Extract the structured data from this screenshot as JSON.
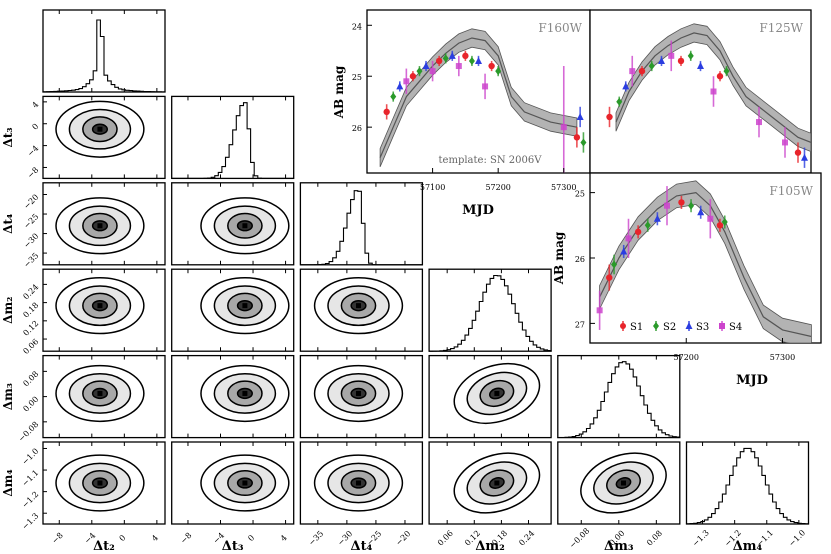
{
  "chart_data": [
    {
      "type": "corner",
      "name": "posterior-corner-plot",
      "parameters": [
        "Δt2",
        "Δt3",
        "Δt4",
        "Δm2",
        "Δm3",
        "Δm4"
      ],
      "axis_labels": {
        "x": [
          "Δt₂",
          "Δt₃",
          "Δt₄",
          "Δm₂",
          "Δm₃",
          "Δm₄"
        ],
        "y": [
          "Δt₃",
          "Δt₄",
          "Δm₂",
          "Δm₃",
          "Δm₄"
        ]
      },
      "ranges": [
        [
          -10,
          5
        ],
        [
          -10,
          5
        ],
        [
          -38,
          -17
        ],
        [
          0.02,
          0.29
        ],
        [
          -0.13,
          0.13
        ],
        [
          -1.35,
          -0.97
        ]
      ],
      "ticks": [
        {
          "values": [
            -8,
            -4,
            0,
            4
          ],
          "labels": [
            "−8",
            "−4",
            "0",
            "4"
          ]
        },
        {
          "values": [
            -8,
            -4,
            0,
            4
          ],
          "labels": [
            "−8",
            "−4",
            "0",
            "4"
          ]
        },
        {
          "values": [
            -35,
            -30,
            -25,
            -20
          ],
          "labels": [
            "−35",
            "−30",
            "−25",
            "−20"
          ]
        },
        {
          "values": [
            0.06,
            0.12,
            0.18,
            0.24
          ],
          "labels": [
            "0.06",
            "0.12",
            "0.18",
            "0.24"
          ]
        },
        {
          "values": [
            -0.08,
            0.0,
            0.08
          ],
          "labels": [
            "−0.08",
            "0.00",
            "0.08"
          ]
        },
        {
          "values": [
            -1.3,
            -1.2,
            -1.1,
            -1.0
          ],
          "labels": [
            "−1.3",
            "−1.2",
            "−1.1",
            "−1.0"
          ]
        }
      ],
      "y_ticks": [
        {
          "values": [
            4,
            0,
            -4,
            -8
          ],
          "labels": [
            "4",
            "0",
            "−4",
            "−8"
          ]
        },
        {
          "values": [
            -20,
            -25,
            -30,
            -35
          ],
          "labels": [
            "−20",
            "−25",
            "−30",
            "−35"
          ]
        },
        {
          "values": [
            0.24,
            0.18,
            0.12,
            0.06
          ],
          "labels": [
            "0.24",
            "0.18",
            "0.12",
            "0.06"
          ]
        },
        {
          "values": [
            0.08,
            0.0,
            -0.08
          ],
          "labels": [
            "0.08",
            "0.00",
            "−0.08"
          ]
        },
        {
          "values": [
            -1.0,
            -1.1,
            -1.2,
            -1.3
          ],
          "labels": [
            "−1.0",
            "−1.1",
            "−1.2",
            "−1.3"
          ]
        }
      ],
      "modes": [
        -3.0,
        -1.0,
        -28.0,
        0.17,
        0.01,
        -1.16
      ],
      "hist_shape": [
        "peaked",
        "skewed",
        "skewed",
        "gaussian",
        "gaussian",
        "gaussian"
      ]
    },
    {
      "type": "scatter",
      "name": "light-curve-panels",
      "ylabel": "AB mag",
      "xlabel": "MJD",
      "legend": [
        "S1",
        "S2",
        "S3",
        "S4"
      ],
      "series_colors": [
        "#e8242b",
        "#2a9a2a",
        "#2b3de0",
        "#cc44cc"
      ],
      "template_label": "template: SN 2006V",
      "panels": [
        {
          "band": "F160W",
          "x_range": [
            57000,
            57340
          ],
          "y_range": [
            26.9,
            23.7
          ],
          "x_ticks": [
            57100,
            57200,
            57300
          ],
          "x_tick_labels": [
            "57100",
            "57200",
            "57300"
          ],
          "y_ticks": [
            24,
            25,
            26
          ],
          "y_tick_labels": [
            "24",
            "25",
            "26"
          ],
          "template": [
            [
              57020,
              26.6
            ],
            [
              57040,
              26.0
            ],
            [
              57060,
              25.4
            ],
            [
              57080,
              25.1
            ],
            [
              57100,
              24.8
            ],
            [
              57120,
              24.55
            ],
            [
              57140,
              24.35
            ],
            [
              57160,
              24.25
            ],
            [
              57180,
              24.3
            ],
            [
              57200,
              24.6
            ],
            [
              57210,
              25.0
            ],
            [
              57220,
              25.4
            ],
            [
              57240,
              25.7
            ],
            [
              57280,
              25.9
            ],
            [
              57320,
              26.0
            ]
          ],
          "points": [
            {
              "s": 0,
              "x": 57030,
              "y": 25.7,
              "e": 0.15
            },
            {
              "s": 1,
              "x": 57040,
              "y": 25.4,
              "e": 0.1
            },
            {
              "s": 2,
              "x": 57050,
              "y": 25.2,
              "e": 0.1
            },
            {
              "s": 3,
              "x": 57060,
              "y": 25.1,
              "e": 0.25
            },
            {
              "s": 0,
              "x": 57070,
              "y": 25.0,
              "e": 0.1
            },
            {
              "s": 1,
              "x": 57080,
              "y": 24.9,
              "e": 0.1
            },
            {
              "s": 2,
              "x": 57090,
              "y": 24.8,
              "e": 0.1
            },
            {
              "s": 3,
              "x": 57100,
              "y": 24.9,
              "e": 0.2
            },
            {
              "s": 0,
              "x": 57110,
              "y": 24.7,
              "e": 0.1
            },
            {
              "s": 1,
              "x": 57120,
              "y": 24.65,
              "e": 0.1
            },
            {
              "s": 2,
              "x": 57130,
              "y": 24.6,
              "e": 0.1
            },
            {
              "s": 3,
              "x": 57140,
              "y": 24.8,
              "e": 0.2
            },
            {
              "s": 0,
              "x": 57150,
              "y": 24.6,
              "e": 0.1
            },
            {
              "s": 1,
              "x": 57160,
              "y": 24.7,
              "e": 0.1
            },
            {
              "s": 2,
              "x": 57170,
              "y": 24.7,
              "e": 0.1
            },
            {
              "s": 3,
              "x": 57180,
              "y": 25.2,
              "e": 0.25
            },
            {
              "s": 0,
              "x": 57190,
              "y": 24.8,
              "e": 0.1
            },
            {
              "s": 1,
              "x": 57200,
              "y": 24.9,
              "e": 0.1
            },
            {
              "s": 3,
              "x": 57300,
              "y": 26.0,
              "e": 1.2
            },
            {
              "s": 0,
              "x": 57320,
              "y": 26.2,
              "e": 0.2
            },
            {
              "s": 1,
              "x": 57330,
              "y": 26.3,
              "e": 0.2
            },
            {
              "s": 2,
              "x": 57325,
              "y": 25.8,
              "e": 0.2
            }
          ]
        },
        {
          "band": "F125W",
          "x_range": [
            57000,
            57340
          ],
          "y_range": [
            26.9,
            23.7
          ],
          "x_ticks": [],
          "x_tick_labels": [],
          "y_ticks": [],
          "y_tick_labels": [],
          "template": [
            [
              57040,
              25.9
            ],
            [
              57060,
              25.3
            ],
            [
              57080,
              24.9
            ],
            [
              57100,
              24.6
            ],
            [
              57120,
              24.4
            ],
            [
              57140,
              24.25
            ],
            [
              57160,
              24.15
            ],
            [
              57180,
              24.2
            ],
            [
              57200,
              24.5
            ],
            [
              57220,
              25.0
            ],
            [
              57240,
              25.4
            ],
            [
              57280,
              25.8
            ],
            [
              57320,
              26.2
            ],
            [
              57340,
              26.3
            ]
          ],
          "points": [
            {
              "s": 0,
              "x": 57030,
              "y": 25.8,
              "e": 0.2
            },
            {
              "s": 1,
              "x": 57045,
              "y": 25.5,
              "e": 0.1
            },
            {
              "s": 2,
              "x": 57055,
              "y": 25.2,
              "e": 0.1
            },
            {
              "s": 3,
              "x": 57065,
              "y": 24.9,
              "e": 0.3
            },
            {
              "s": 0,
              "x": 57080,
              "y": 24.9,
              "e": 0.1
            },
            {
              "s": 1,
              "x": 57095,
              "y": 24.8,
              "e": 0.1
            },
            {
              "s": 2,
              "x": 57110,
              "y": 24.7,
              "e": 0.1
            },
            {
              "s": 3,
              "x": 57125,
              "y": 24.6,
              "e": 0.3
            },
            {
              "s": 0,
              "x": 57140,
              "y": 24.7,
              "e": 0.1
            },
            {
              "s": 1,
              "x": 57155,
              "y": 24.6,
              "e": 0.1
            },
            {
              "s": 2,
              "x": 57170,
              "y": 24.8,
              "e": 0.1
            },
            {
              "s": 3,
              "x": 57190,
              "y": 25.3,
              "e": 0.3
            },
            {
              "s": 0,
              "x": 57200,
              "y": 25.0,
              "e": 0.1
            },
            {
              "s": 1,
              "x": 57210,
              "y": 24.9,
              "e": 0.1
            },
            {
              "s": 3,
              "x": 57260,
              "y": 25.9,
              "e": 0.3
            },
            {
              "s": 3,
              "x": 57300,
              "y": 26.3,
              "e": 0.3
            },
            {
              "s": 0,
              "x": 57320,
              "y": 26.5,
              "e": 0.2
            },
            {
              "s": 2,
              "x": 57330,
              "y": 26.6,
              "e": 0.2
            }
          ]
        },
        {
          "band": "F105W",
          "x_range": [
            57100,
            57340
          ],
          "y_range": [
            27.3,
            24.7
          ],
          "x_ticks": [
            57200,
            57300
          ],
          "x_tick_labels": [
            "57200",
            "57300"
          ],
          "y_ticks": [
            25,
            26,
            27
          ],
          "y_tick_labels": [
            "25",
            "26",
            "27"
          ],
          "template": [
            [
              57110,
              26.6
            ],
            [
              57130,
              26.0
            ],
            [
              57150,
              25.55
            ],
            [
              57170,
              25.25
            ],
            [
              57190,
              25.05
            ],
            [
              57210,
              25.0
            ],
            [
              57225,
              25.2
            ],
            [
              57240,
              25.6
            ],
            [
              57260,
              26.3
            ],
            [
              57280,
              26.9
            ],
            [
              57300,
              27.1
            ],
            [
              57330,
              27.2
            ]
          ],
          "points": [
            {
              "s": 3,
              "x": 57110,
              "y": 26.8,
              "e": 0.3
            },
            {
              "s": 0,
              "x": 57120,
              "y": 26.3,
              "e": 0.2
            },
            {
              "s": 1,
              "x": 57125,
              "y": 26.1,
              "e": 0.15
            },
            {
              "s": 2,
              "x": 57135,
              "y": 25.9,
              "e": 0.1
            },
            {
              "s": 3,
              "x": 57140,
              "y": 25.7,
              "e": 0.3
            },
            {
              "s": 0,
              "x": 57150,
              "y": 25.6,
              "e": 0.1
            },
            {
              "s": 1,
              "x": 57160,
              "y": 25.5,
              "e": 0.1
            },
            {
              "s": 2,
              "x": 57170,
              "y": 25.4,
              "e": 0.1
            },
            {
              "s": 3,
              "x": 57180,
              "y": 25.2,
              "e": 0.3
            },
            {
              "s": 0,
              "x": 57195,
              "y": 25.15,
              "e": 0.1
            },
            {
              "s": 1,
              "x": 57205,
              "y": 25.2,
              "e": 0.1
            },
            {
              "s": 2,
              "x": 57215,
              "y": 25.3,
              "e": 0.1
            },
            {
              "s": 3,
              "x": 57225,
              "y": 25.4,
              "e": 0.3
            },
            {
              "s": 0,
              "x": 57235,
              "y": 25.5,
              "e": 0.1
            },
            {
              "s": 1,
              "x": 57240,
              "y": 25.45,
              "e": 0.1
            }
          ]
        }
      ]
    }
  ]
}
